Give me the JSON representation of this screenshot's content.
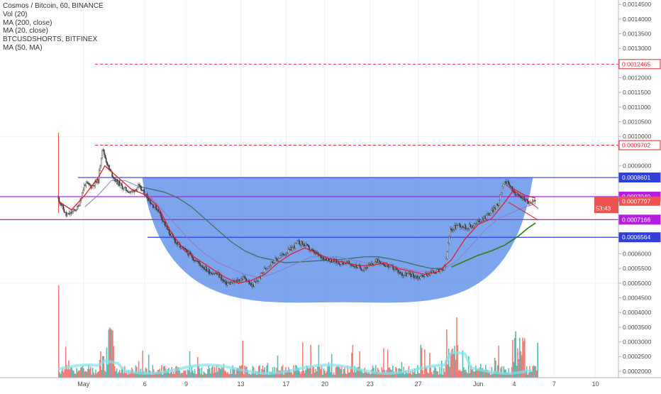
{
  "legend": {
    "title": "Cosmos / Bitcoin, 60, BINANCE",
    "vol": "Vol (20)",
    "ma200": "MA (200, close)",
    "ma20": "MA (20, close)",
    "shorts": "BTCUSDSHORTS, BITFINEX",
    "ma50": "MA (50, MA)"
  },
  "chart_data": {
    "type": "line",
    "title": "Cosmos / Bitcoin, 60, BINANCE",
    "x_ticks": [
      "May",
      "6",
      "9",
      "13",
      "17",
      "20",
      "23",
      "27",
      "Jun",
      "4",
      "7",
      "10"
    ],
    "y_ticks": [
      "0.0002000",
      "0.0002500",
      "0.0003000",
      "0.0003500",
      "0.0004000",
      "0.0004500",
      "0.0005000",
      "0.0005500",
      "0.0006000",
      "0.0006564",
      "0.0007166",
      "0.0007797",
      "0.0007949",
      "0.0008601",
      "0.0009000",
      "0.0009702",
      "0.0010000",
      "0.0010500",
      "0.0011000",
      "0.0011500",
      "0.0012000",
      "0.0012465",
      "0.0013000",
      "0.0013500",
      "0.0014000",
      "0.0014500"
    ],
    "ylim": [
      0.000178,
      0.001465
    ],
    "grid": true,
    "levels": [
      {
        "label": "0.0012465",
        "value": 0.0012465,
        "style": "dashed",
        "color": "#f23645"
      },
      {
        "label": "0.0009702",
        "value": 0.0009702,
        "style": "dashed",
        "color": "#f23645"
      },
      {
        "label": "0.0008601",
        "value": 0.0008601,
        "style": "solid",
        "color": "#2f3fd8"
      },
      {
        "label": "0.0007949",
        "value": 0.0007949,
        "style": "solid",
        "color": "#b51ee0"
      },
      {
        "label": "0.0007166",
        "value": 0.0007166,
        "style": "solid",
        "color": "#b51ee0"
      },
      {
        "label": "0.0006564",
        "value": 0.0006564,
        "style": "solid",
        "color": "#2f3fd8"
      }
    ],
    "last_price": {
      "label": "0.0007797",
      "value": 0.0007797,
      "countdown": "53:43"
    },
    "price_path": [
      [
        0.0,
        0.00079
      ],
      [
        0.6,
        0.00073
      ],
      [
        1.0,
        0.00074
      ],
      [
        1.5,
        0.00076
      ],
      [
        2.0,
        0.00084
      ],
      [
        2.5,
        0.00083
      ],
      [
        3.0,
        0.00085
      ],
      [
        3.3,
        0.00096
      ],
      [
        3.8,
        0.00089
      ],
      [
        4.3,
        0.00085
      ],
      [
        5.0,
        0.00082
      ],
      [
        5.5,
        0.00081
      ],
      [
        6.0,
        0.00083
      ],
      [
        6.6,
        0.0008
      ],
      [
        7.0,
        0.00077
      ],
      [
        7.5,
        0.00075
      ],
      [
        8.2,
        0.00068
      ],
      [
        9.0,
        0.00063
      ],
      [
        9.8,
        0.0006
      ],
      [
        10.5,
        0.00057
      ],
      [
        11.3,
        0.00054
      ],
      [
        12.0,
        0.00053
      ],
      [
        12.5,
        0.0005
      ],
      [
        13.0,
        0.0005
      ],
      [
        13.5,
        0.00051
      ],
      [
        14.0,
        0.00052
      ],
      [
        14.5,
        0.00049
      ],
      [
        15.0,
        0.00051
      ],
      [
        15.5,
        0.00055
      ],
      [
        16.0,
        0.00057
      ],
      [
        16.6,
        0.00059
      ],
      [
        17.3,
        0.00061
      ],
      [
        18.0,
        0.00064
      ],
      [
        18.5,
        0.00063
      ],
      [
        19.0,
        0.00061
      ],
      [
        19.7,
        0.00059
      ],
      [
        20.4,
        0.00058
      ],
      [
        21.0,
        0.00057
      ],
      [
        21.6,
        0.00057
      ],
      [
        22.2,
        0.00056
      ],
      [
        22.8,
        0.00055
      ],
      [
        23.4,
        0.00056
      ],
      [
        24.0,
        0.00058
      ],
      [
        24.6,
        0.00056
      ],
      [
        25.2,
        0.00055
      ],
      [
        25.8,
        0.00053
      ],
      [
        26.4,
        0.00053
      ],
      [
        27.0,
        0.00052
      ],
      [
        27.6,
        0.00053
      ],
      [
        28.2,
        0.00054
      ],
      [
        28.6,
        0.00054
      ],
      [
        29.0,
        0.00055
      ],
      [
        29.4,
        0.00068
      ],
      [
        30.0,
        0.0007
      ],
      [
        30.6,
        0.00069
      ],
      [
        31.2,
        0.0007
      ],
      [
        31.8,
        0.00072
      ],
      [
        32.4,
        0.00074
      ],
      [
        33.0,
        0.00077
      ],
      [
        33.4,
        0.00085
      ],
      [
        33.9,
        0.00083
      ],
      [
        34.4,
        0.0008
      ],
      [
        34.9,
        0.00079
      ],
      [
        35.4,
        0.00077
      ],
      [
        35.8,
        0.00078
      ]
    ],
    "ma20": [
      [
        0.0,
        0.00078
      ],
      [
        1.0,
        0.00075
      ],
      [
        2.0,
        0.0008
      ],
      [
        3.0,
        0.00086
      ],
      [
        3.5,
        0.0009
      ],
      [
        4.5,
        0.00086
      ],
      [
        5.5,
        0.00082
      ],
      [
        6.6,
        0.0008
      ],
      [
        7.5,
        0.00076
      ],
      [
        8.5,
        0.00067
      ],
      [
        9.5,
        0.00061
      ],
      [
        10.5,
        0.00058
      ],
      [
        11.5,
        0.00055
      ],
      [
        12.5,
        0.00052
      ],
      [
        13.5,
        0.0005
      ],
      [
        14.5,
        0.00051
      ],
      [
        15.5,
        0.00053
      ],
      [
        16.5,
        0.00057
      ],
      [
        17.5,
        0.0006
      ],
      [
        18.5,
        0.00062
      ],
      [
        19.5,
        0.0006
      ],
      [
        20.5,
        0.00058
      ],
      [
        21.5,
        0.00057
      ],
      [
        22.5,
        0.00056
      ],
      [
        23.5,
        0.00056
      ],
      [
        24.5,
        0.00057
      ],
      [
        25.5,
        0.00055
      ],
      [
        26.5,
        0.00054
      ],
      [
        27.5,
        0.00053
      ],
      [
        28.5,
        0.00054
      ],
      [
        29.5,
        0.00058
      ],
      [
        30.5,
        0.00065
      ],
      [
        31.5,
        0.0007
      ],
      [
        32.5,
        0.00072
      ],
      [
        33.4,
        0.00077
      ],
      [
        34.2,
        0.00082
      ],
      [
        35.0,
        0.0008
      ],
      [
        35.8,
        0.00079
      ]
    ],
    "ma50": [
      [
        2.0,
        0.00076
      ],
      [
        3.0,
        0.0008
      ],
      [
        4.0,
        0.00085
      ],
      [
        5.0,
        0.00085
      ],
      [
        6.0,
        0.00083
      ],
      [
        7.0,
        0.00079
      ],
      [
        8.0,
        0.00074
      ],
      [
        9.0,
        0.00069
      ],
      [
        10.0,
        0.00064
      ],
      [
        11.0,
        0.0006
      ],
      [
        12.0,
        0.00057
      ],
      [
        13.0,
        0.00055
      ],
      [
        14.0,
        0.00053
      ],
      [
        15.0,
        0.00052
      ],
      [
        16.0,
        0.00053
      ],
      [
        17.0,
        0.00055
      ],
      [
        18.0,
        0.00057
      ],
      [
        19.0,
        0.00059
      ],
      [
        20.0,
        0.00059
      ],
      [
        21.0,
        0.00059
      ],
      [
        22.0,
        0.00058
      ],
      [
        23.0,
        0.00057
      ],
      [
        24.0,
        0.00057
      ],
      [
        25.0,
        0.00056
      ],
      [
        26.0,
        0.00055
      ],
      [
        27.0,
        0.00054
      ],
      [
        28.0,
        0.00054
      ],
      [
        29.0,
        0.00055
      ],
      [
        30.0,
        0.00058
      ],
      [
        31.0,
        0.00063
      ],
      [
        32.0,
        0.00068
      ],
      [
        33.0,
        0.00072
      ],
      [
        34.0,
        0.00074
      ],
      [
        35.0,
        0.00076
      ],
      [
        35.8,
        0.00077
      ]
    ],
    "ma200": [
      [
        6.0,
        0.00083
      ],
      [
        7.0,
        0.00082
      ],
      [
        8.0,
        0.00081
      ],
      [
        9.0,
        0.00079
      ],
      [
        10.0,
        0.00076
      ],
      [
        11.0,
        0.00072
      ],
      [
        12.0,
        0.00068
      ],
      [
        13.0,
        0.00064
      ],
      [
        14.0,
        0.00061
      ],
      [
        15.0,
        0.00059
      ],
      [
        16.0,
        0.00058
      ],
      [
        17.0,
        0.00057
      ],
      [
        18.0,
        0.000572
      ],
      [
        19.0,
        0.000575
      ],
      [
        20.0,
        0.000578
      ],
      [
        21.0,
        0.00058
      ],
      [
        22.0,
        0.000585
      ],
      [
        23.0,
        0.00059
      ],
      [
        24.0,
        0.00059
      ],
      [
        25.0,
        0.000582
      ],
      [
        26.0,
        0.000572
      ],
      [
        27.0,
        0.00056
      ],
      [
        28.0,
        0.00055
      ],
      [
        29.0,
        0.00055
      ]
    ],
    "shorts_line": [
      [
        29.5,
        0.000555
      ],
      [
        30.5,
        0.000575
      ],
      [
        31.5,
        0.000595
      ],
      [
        32.5,
        0.00061
      ],
      [
        33.5,
        0.00063
      ],
      [
        34.5,
        0.00066
      ],
      [
        35.3,
        0.00069
      ],
      [
        35.8,
        0.000705
      ]
    ],
    "cup": {
      "left": [
        6.3,
        0.0008601
      ],
      "right": [
        35.6,
        0.0008601
      ],
      "bottom": [
        21.3,
        0.000435
      ],
      "color": "#5b8fe8"
    },
    "flag_lines": [
      {
        "from": [
          33.6,
          0.000835
        ],
        "to": [
          36.0,
          0.000755
        ]
      },
      {
        "from": [
          33.8,
          0.000775
        ],
        "to": [
          36.0,
          0.000715
        ]
      }
    ]
  }
}
